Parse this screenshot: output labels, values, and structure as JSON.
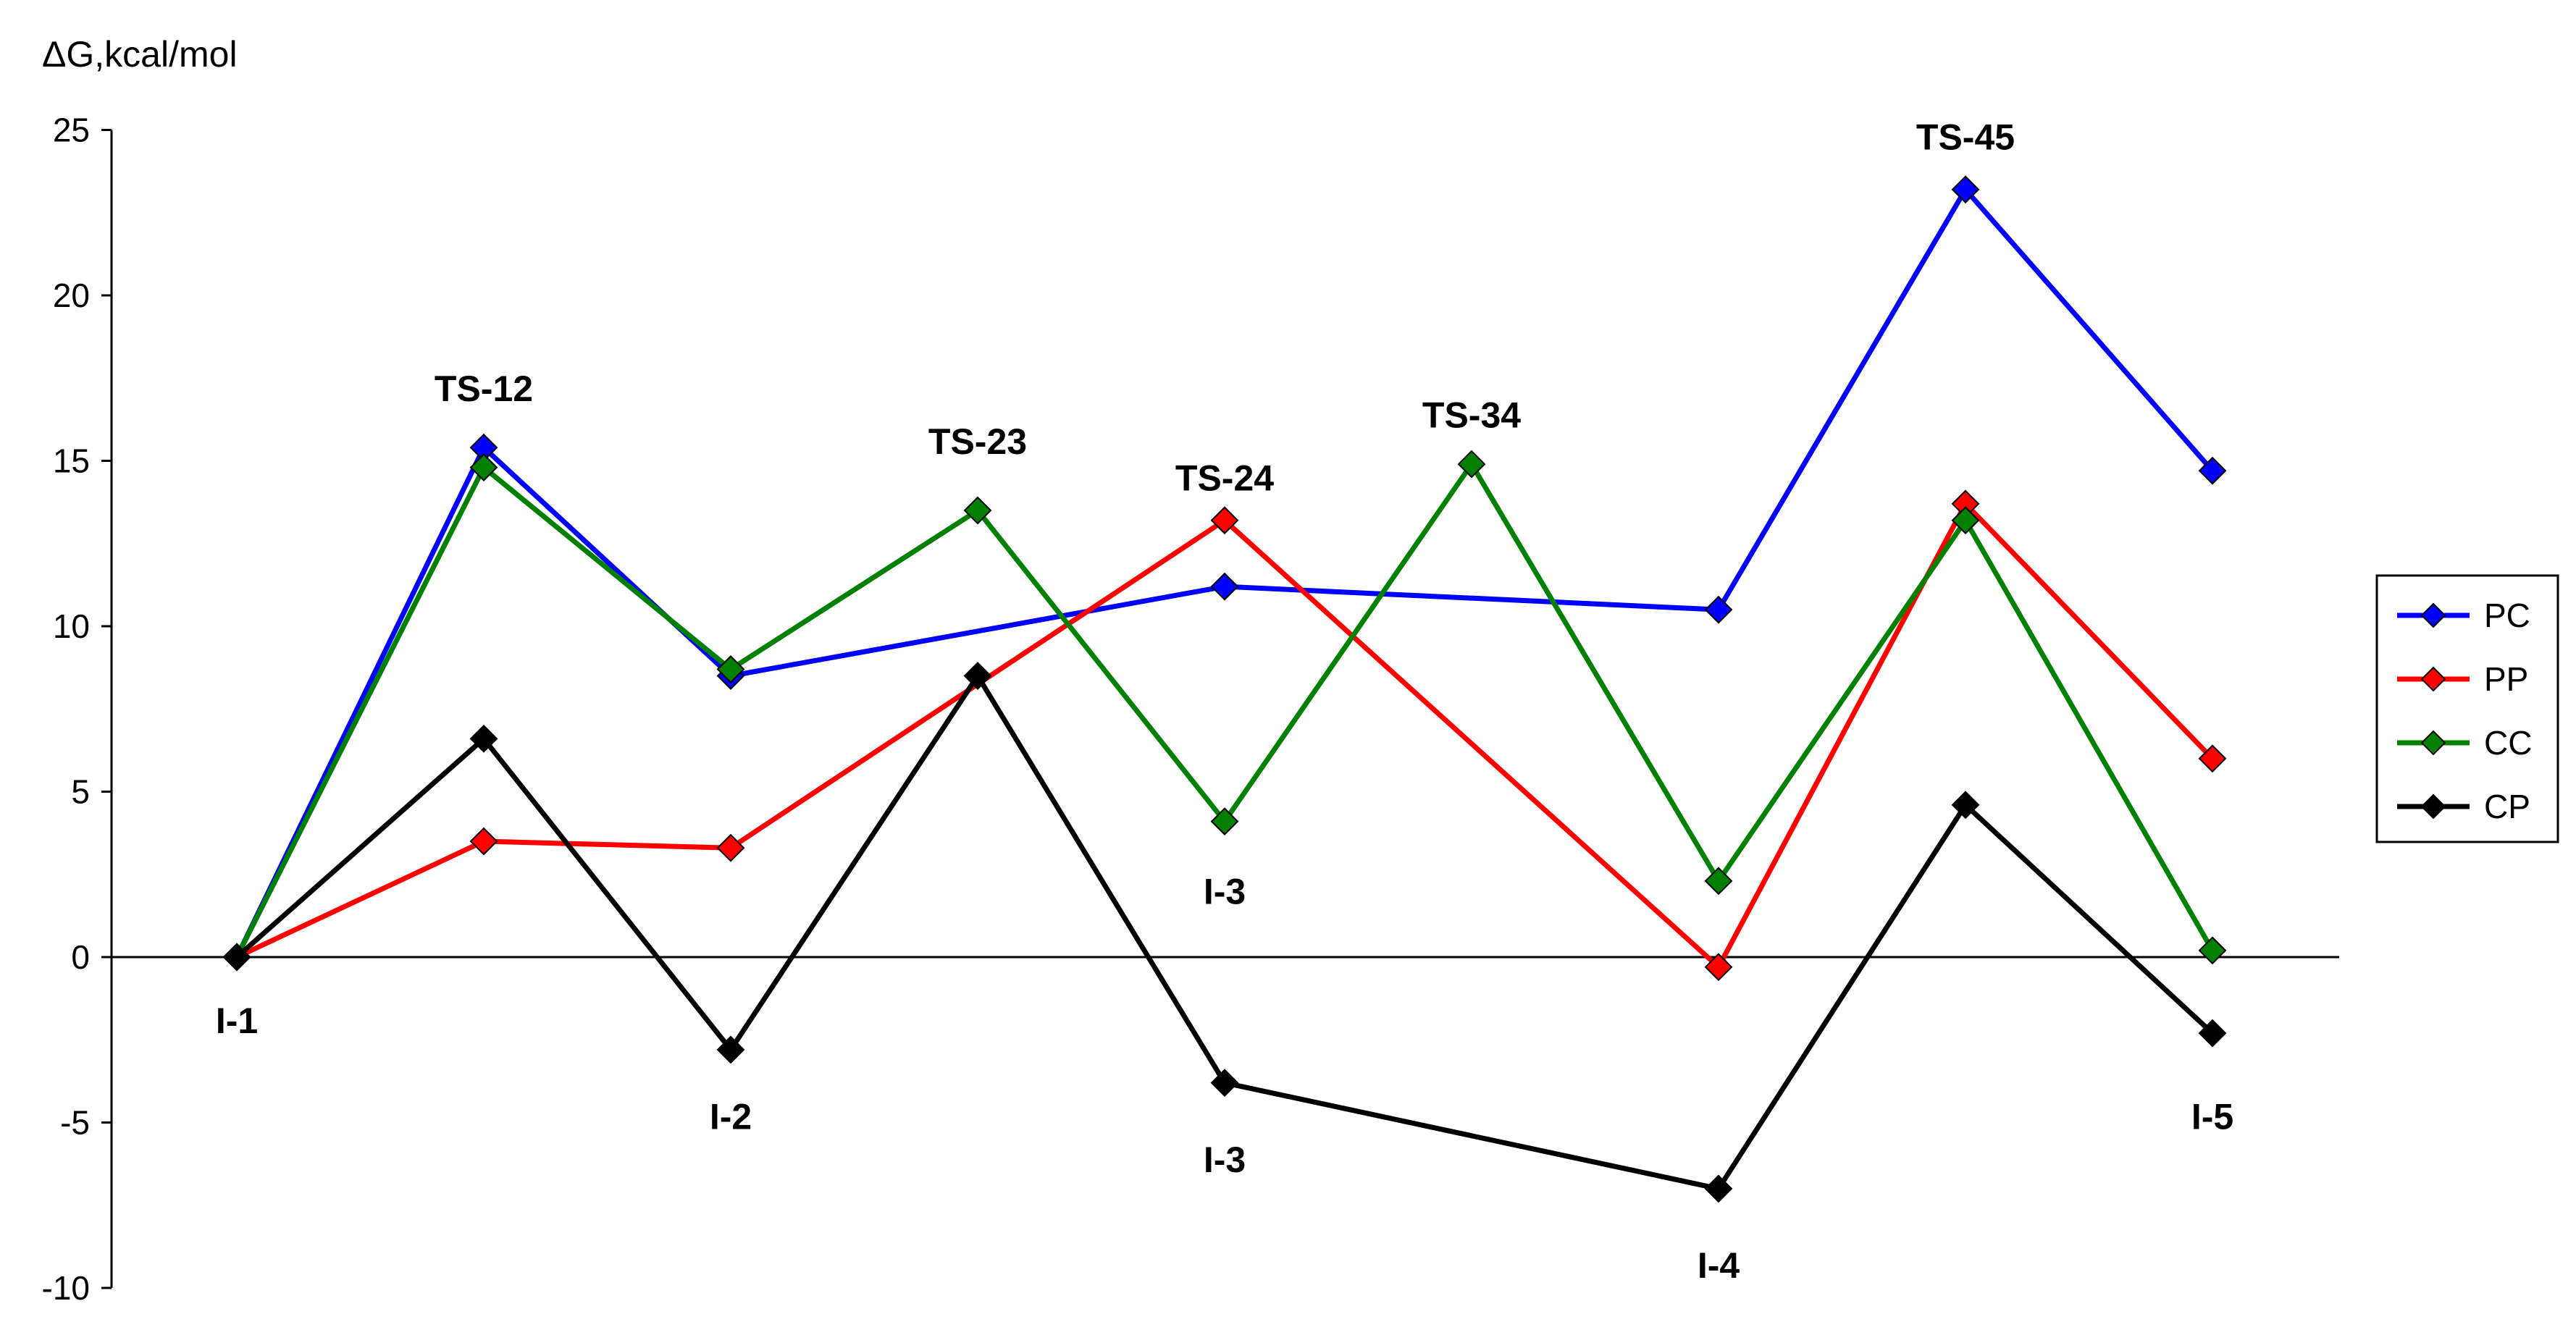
{
  "chart_data": {
    "type": "line",
    "ylabel": "ΔG,kcal/mol",
    "ylim": [
      -10,
      25
    ],
    "yticks": [
      "25",
      "20",
      "15",
      "10",
      "5",
      "0",
      "-5",
      "-10"
    ],
    "ytick_values": [
      25,
      20,
      15,
      10,
      5,
      0,
      -5,
      -10
    ],
    "legend_position": "right",
    "series": [
      {
        "name": "PC",
        "color": "#0000ff",
        "values": [
          0,
          15.4,
          8.5,
          null,
          11.2,
          null,
          10.5,
          23.2,
          14.7
        ]
      },
      {
        "name": "PP",
        "color": "#ff0000",
        "values": [
          0,
          3.5,
          3.3,
          null,
          13.2,
          null,
          -0.3,
          13.7,
          6.0
        ]
      },
      {
        "name": "CC",
        "color": "#008000",
        "values": [
          0,
          14.8,
          8.7,
          13.5,
          4.1,
          14.9,
          2.3,
          13.2,
          0.2
        ]
      },
      {
        "name": "CP",
        "color": "#000000",
        "values": [
          0,
          6.6,
          -2.8,
          8.5,
          -3.8,
          null,
          -7.0,
          4.6,
          -2.3
        ]
      }
    ],
    "annotations": [
      {
        "text": "I-1",
        "x": 0,
        "y": -1.9
      },
      {
        "text": "TS-12",
        "x": 1,
        "y": 17.2
      },
      {
        "text": "I-2",
        "x": 2,
        "y": -4.8
      },
      {
        "text": "TS-23",
        "x": 3,
        "y": 15.6
      },
      {
        "text": "TS-24",
        "x": 4,
        "y": 14.5
      },
      {
        "text": "I-3",
        "x": 4,
        "y": 2.0
      },
      {
        "text": "I-3",
        "x": 4,
        "y": -6.1
      },
      {
        "text": "TS-34",
        "x": 5,
        "y": 16.4
      },
      {
        "text": "I-4",
        "x": 6,
        "y": -9.3
      },
      {
        "text": "TS-45",
        "x": 7,
        "y": 24.8
      },
      {
        "text": "I-5",
        "x": 8,
        "y": -4.8
      }
    ]
  }
}
